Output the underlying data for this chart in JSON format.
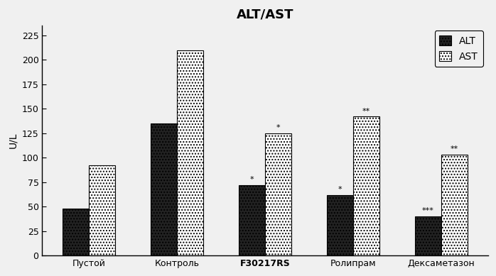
{
  "title": "ALT/AST",
  "ylabel": "U/L",
  "categories": [
    "Пустой",
    "Контроль",
    "F30217RS",
    "Ролипрам",
    "Дексаметазон"
  ],
  "ALT_values": [
    48,
    135,
    72,
    62,
    40
  ],
  "AST_values": [
    92,
    210,
    125,
    142,
    103
  ],
  "ALT_annotations": [
    "",
    "",
    "*",
    "*",
    "***"
  ],
  "AST_annotations": [
    "",
    "",
    "*",
    "**",
    "**"
  ],
  "bar_width": 0.3,
  "ylim": [
    0,
    235
  ],
  "yticks": [
    0,
    25,
    50,
    75,
    100,
    125,
    150,
    175,
    200,
    225
  ],
  "alt_color": "#222222",
  "title_fontsize": 13,
  "label_fontsize": 10,
  "tick_fontsize": 9,
  "legend_fontsize": 10,
  "bg_color": "#f0f0f0"
}
